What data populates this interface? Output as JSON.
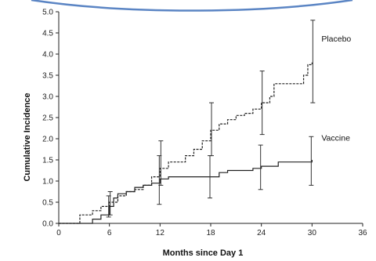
{
  "chart_data": {
    "type": "line",
    "title": "",
    "xlabel": "Months since Day 1",
    "ylabel": "Cumulative Incidence",
    "xlim": [
      0,
      36
    ],
    "ylim": [
      0,
      5.0
    ],
    "x_ticks": [
      0,
      6,
      12,
      18,
      24,
      30,
      36
    ],
    "x_tick_labels": [
      "0",
      "6",
      "12",
      "18",
      "24",
      "30",
      "36"
    ],
    "y_ticks": [
      0,
      0.5,
      1.0,
      1.5,
      2.0,
      2.5,
      3.0,
      3.5,
      4.0,
      4.5,
      5.0
    ],
    "y_tick_labels": [
      "0.0",
      "0.5",
      "1.0",
      "1.5",
      "2.0",
      "2.5",
      "3.0",
      "3.5",
      "4.0",
      "4.5",
      "5.0"
    ],
    "grid": false,
    "series": [
      {
        "name": "Placebo",
        "step_points": [
          [
            0,
            0
          ],
          [
            2,
            0
          ],
          [
            2.5,
            0.2
          ],
          [
            4,
            0.3
          ],
          [
            5,
            0.4
          ],
          [
            6,
            0.5
          ],
          [
            7,
            0.65
          ],
          [
            8,
            0.75
          ],
          [
            9,
            0.8
          ],
          [
            10,
            0.9
          ],
          [
            11,
            1.1
          ],
          [
            12,
            1.3
          ],
          [
            13,
            1.45
          ],
          [
            15,
            1.6
          ],
          [
            16,
            1.75
          ],
          [
            17,
            1.95
          ],
          [
            18,
            2.2
          ],
          [
            19,
            2.35
          ],
          [
            20,
            2.45
          ],
          [
            21,
            2.55
          ],
          [
            22,
            2.6
          ],
          [
            23,
            2.7
          ],
          [
            24,
            2.85
          ],
          [
            25,
            3.0
          ],
          [
            25.5,
            3.3
          ],
          [
            28,
            3.3
          ],
          [
            29,
            3.5
          ],
          [
            29.5,
            3.75
          ],
          [
            30,
            3.8
          ]
        ],
        "error_bars": [
          {
            "x": 6,
            "y": 0.5,
            "low": 0.2,
            "high": 0.75
          },
          {
            "x": 12,
            "y": 1.3,
            "low": 0.9,
            "high": 1.95
          },
          {
            "x": 18,
            "y": 2.2,
            "low": 1.6,
            "high": 2.85
          },
          {
            "x": 24,
            "y": 2.85,
            "low": 2.1,
            "high": 3.6
          },
          {
            "x": 30,
            "y": 3.8,
            "low": 2.85,
            "high": 4.8
          }
        ]
      },
      {
        "name": "Vaccine",
        "step_points": [
          [
            0,
            0
          ],
          [
            3,
            0
          ],
          [
            4,
            0.1
          ],
          [
            5,
            0.2
          ],
          [
            6,
            0.4
          ],
          [
            6.5,
            0.6
          ],
          [
            7,
            0.7
          ],
          [
            8,
            0.75
          ],
          [
            9,
            0.85
          ],
          [
            10,
            0.9
          ],
          [
            11,
            0.95
          ],
          [
            12,
            1.05
          ],
          [
            13,
            1.1
          ],
          [
            18,
            1.1
          ],
          [
            19,
            1.2
          ],
          [
            20,
            1.25
          ],
          [
            23,
            1.3
          ],
          [
            24,
            1.35
          ],
          [
            26,
            1.45
          ],
          [
            30,
            1.5
          ]
        ],
        "error_bars": [
          {
            "x": 6,
            "y": 0.4,
            "low": 0.15,
            "high": 0.65
          },
          {
            "x": 12,
            "y": 1.05,
            "low": 0.45,
            "high": 1.6
          },
          {
            "x": 18,
            "y": 1.1,
            "low": 0.6,
            "high": 1.6
          },
          {
            "x": 24,
            "y": 1.35,
            "low": 0.8,
            "high": 1.85
          },
          {
            "x": 30,
            "y": 1.5,
            "low": 0.9,
            "high": 2.05
          }
        ]
      }
    ]
  }
}
